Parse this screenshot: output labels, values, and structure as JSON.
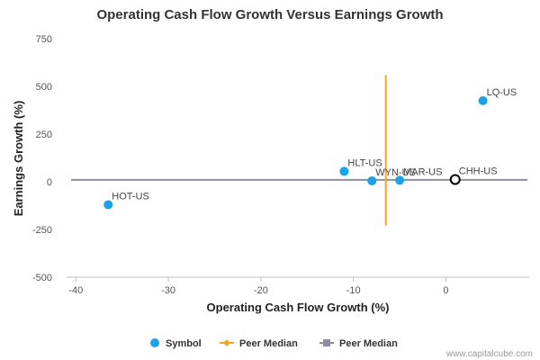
{
  "chart_data": {
    "type": "scatter",
    "title": "Operating Cash Flow Growth Versus Earnings Growth",
    "xlabel": "Operating Cash Flow Growth (%)",
    "ylabel": "Earnings Growth (%)",
    "xlim": [
      -41,
      9
    ],
    "ylim": [
      -500,
      750
    ],
    "xticks": [
      -40,
      -30,
      -20,
      -10,
      0
    ],
    "yticks": [
      -500,
      -250,
      0,
      250,
      500,
      750
    ],
    "grid": false,
    "points": [
      {
        "label": "HOT-US",
        "x": -36.5,
        "y": -120,
        "style": "filled"
      },
      {
        "label": "HLT-US",
        "x": -11.0,
        "y": 55,
        "style": "filled"
      },
      {
        "label": "WYN-US",
        "x": -8.0,
        "y": 5,
        "style": "filled"
      },
      {
        "label": "MAR-US",
        "x": -5.0,
        "y": 8,
        "style": "filled"
      },
      {
        "label": "LQ-US",
        "x": 4.0,
        "y": 425,
        "style": "filled"
      },
      {
        "label": "CHH-US",
        "x": 1.0,
        "y": 12,
        "style": "hollow"
      }
    ],
    "peer_median_x": {
      "value": -6.5,
      "y_range": [
        -230,
        560
      ]
    },
    "peer_median_y": {
      "value": 10
    },
    "colors": {
      "symbol": "#1aa3e8",
      "peer_median_x": "#f5a623",
      "peer_median_y": "#8e8e9e",
      "highlight_outline": "#000000"
    },
    "legend": {
      "placement": "bottom-center",
      "items": [
        {
          "label": "Symbol",
          "marker": "circle",
          "color": "#1aa3e8"
        },
        {
          "label": "Peer Median",
          "marker": "diamond-line",
          "color": "#f5a623"
        },
        {
          "label": "Peer Median",
          "marker": "square-line",
          "color": "#8e8e9e"
        }
      ]
    },
    "credit": "www.capitalcube.com"
  }
}
